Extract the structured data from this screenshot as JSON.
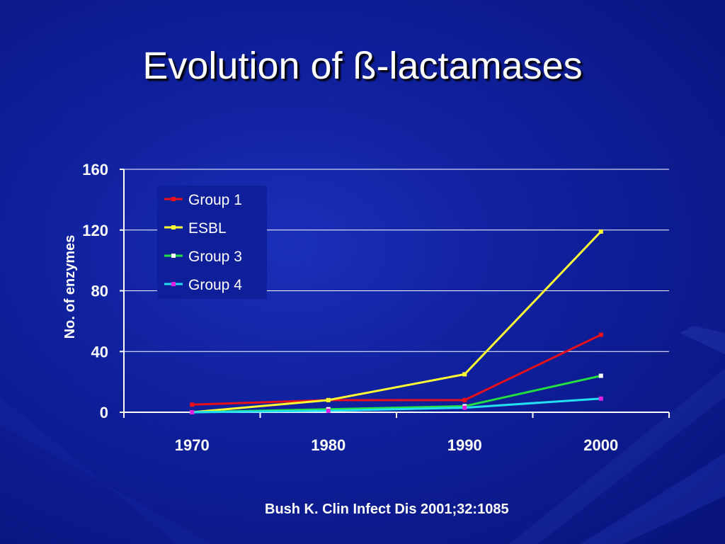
{
  "slide": {
    "title": "Evolution of ß-lactamases",
    "citation": "Bush K. Clin Infect Dis 2001;32:1085"
  },
  "chart_data": {
    "type": "line",
    "title": "",
    "xlabel": "",
    "ylabel": "No. of enzymes",
    "categories": [
      "1970",
      "1980",
      "1990",
      "2000"
    ],
    "ylim": [
      0,
      160
    ],
    "yticks": [
      0,
      40,
      80,
      120,
      160
    ],
    "grid": true,
    "legend_position": "top-left",
    "series": [
      {
        "name": "Group 1",
        "values": [
          5,
          8,
          8,
          51
        ],
        "color": "#e8101a",
        "marker_color": "#e8101a"
      },
      {
        "name": "ESBL",
        "values": [
          0,
          8,
          25,
          119
        ],
        "color": "#ffff33",
        "marker_color": "#ffff33"
      },
      {
        "name": "Group 3",
        "values": [
          0,
          2,
          4,
          24
        ],
        "color": "#22e040",
        "marker_color": "#ffffff"
      },
      {
        "name": "Group 4",
        "values": [
          0,
          1,
          3,
          9
        ],
        "color": "#22e0f0",
        "marker_color": "#e020e0"
      }
    ]
  }
}
